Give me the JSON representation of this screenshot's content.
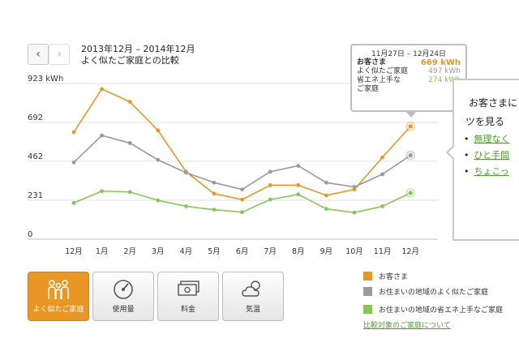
{
  "header": {
    "prev_icon": "chevron-left-icon",
    "next_icon": "chevron-right-icon",
    "period": "2013年12月 – 2014年12月",
    "subtitle": "よく似たご家庭との比較"
  },
  "chart_data": {
    "type": "line",
    "categories": [
      "12月",
      "1月",
      "2月",
      "3月",
      "4月",
      "5月",
      "6月",
      "7月",
      "8月",
      "9月",
      "10月",
      "11月",
      "12月"
    ],
    "y_ticks": [
      "923 kWh",
      "692",
      "462",
      "231",
      "0"
    ],
    "ylim": [
      0,
      923
    ],
    "grid": true,
    "series": [
      {
        "name": "お客さま",
        "color": "#e89624",
        "values": [
          635,
          890,
          815,
          645,
          400,
          270,
          235,
          320,
          320,
          260,
          295,
          485,
          669
        ]
      },
      {
        "name": "お住まいの地域のよく似たご家庭",
        "color": "#9a9a9a",
        "values": [
          455,
          615,
          570,
          470,
          395,
          335,
          295,
          400,
          435,
          335,
          310,
          385,
          497
        ]
      },
      {
        "name": "お住まいの地域の省エネ上手なご家庭",
        "color": "#88c558",
        "values": [
          215,
          285,
          280,
          230,
          195,
          175,
          160,
          235,
          265,
          180,
          158,
          195,
          274
        ]
      }
    ]
  },
  "tooltip": {
    "range": "11月27日 – 12月24日",
    "rows": [
      {
        "label": "お客さま",
        "value": "669 kWh",
        "color": "#e89624",
        "bold": true
      },
      {
        "label": "よく似たご家庭",
        "value": "497 kWh",
        "color": "#9a9a9a",
        "bold": false
      },
      {
        "label": "省エネ上手な",
        "value": "274 kWh",
        "color": "#88c558",
        "bold": false
      },
      {
        "label": "ご家庭",
        "value": "",
        "color": "#333",
        "bold": false
      }
    ]
  },
  "side_panel": {
    "line1": "お客さまに",
    "line2": "ツを見る",
    "links": [
      "無理なく",
      "ひと手間",
      "ちょこっ"
    ]
  },
  "tabs": [
    {
      "label": "よく似たご家庭",
      "icon": "family-icon",
      "active": true
    },
    {
      "label": "使用量",
      "icon": "gauge-icon",
      "active": false
    },
    {
      "label": "料金",
      "icon": "money-icon",
      "active": false
    },
    {
      "label": "気温",
      "icon": "weather-icon",
      "active": false
    }
  ],
  "legend": [
    {
      "label": "お客さま",
      "color": "#e89624"
    },
    {
      "label": "お住まいの地域のよく似たご家庭",
      "color": "#9a9a9a"
    },
    {
      "label": "お住まいの地域の省エネ上手なご家庭",
      "color": "#88c558"
    }
  ],
  "compare_link": "比較対象のご家庭について"
}
